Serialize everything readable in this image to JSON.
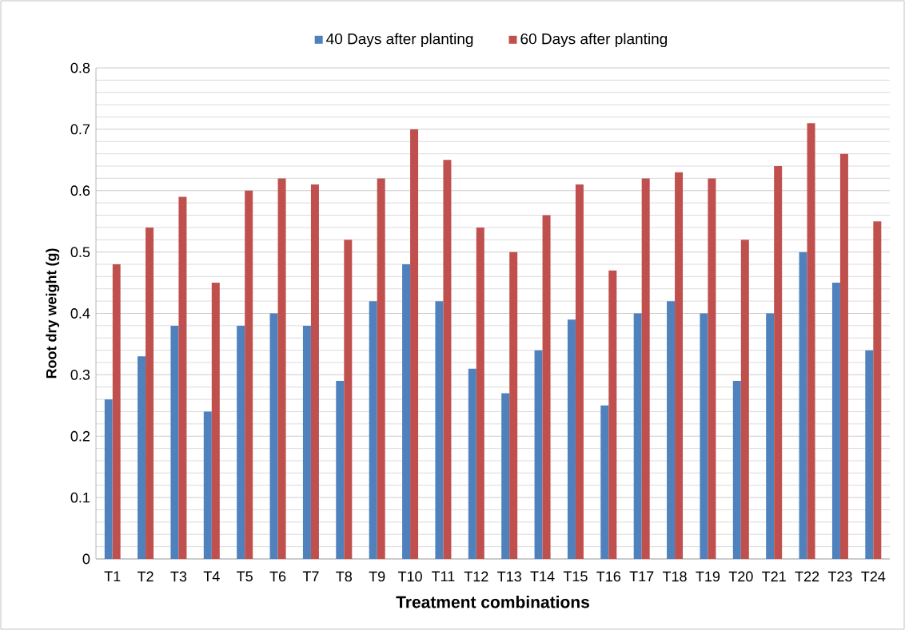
{
  "chart_data": {
    "type": "bar",
    "xlabel": "Treatment combinations",
    "ylabel": "Root dry weight (g)",
    "categories": [
      "T1",
      "T2",
      "T3",
      "T4",
      "T5",
      "T6",
      "T7",
      "T8",
      "T9",
      "T10",
      "T11",
      "T12",
      "T13",
      "T14",
      "T15",
      "T16",
      "T17",
      "T18",
      "T19",
      "T20",
      "T21",
      "T22",
      "T23",
      "T24"
    ],
    "series": [
      {
        "name": "40 Days after planting",
        "color": "#4f81bd",
        "values": [
          0.26,
          0.33,
          0.38,
          0.24,
          0.38,
          0.4,
          0.38,
          0.29,
          0.42,
          0.48,
          0.42,
          0.31,
          0.27,
          0.34,
          0.39,
          0.25,
          0.4,
          0.42,
          0.4,
          0.29,
          0.4,
          0.5,
          0.45,
          0.34
        ]
      },
      {
        "name": "60 Days after planting",
        "color": "#c0504d",
        "values": [
          0.48,
          0.54,
          0.59,
          0.45,
          0.6,
          0.62,
          0.61,
          0.52,
          0.62,
          0.7,
          0.65,
          0.54,
          0.5,
          0.56,
          0.61,
          0.47,
          0.62,
          0.63,
          0.62,
          0.52,
          0.64,
          0.71,
          0.66,
          0.55
        ]
      }
    ],
    "ylim": [
      0,
      0.8
    ],
    "yticks": [
      0,
      0.1,
      0.2,
      0.3,
      0.4,
      0.5,
      0.6,
      0.7,
      0.8
    ],
    "grid": "y",
    "legend": "top"
  }
}
